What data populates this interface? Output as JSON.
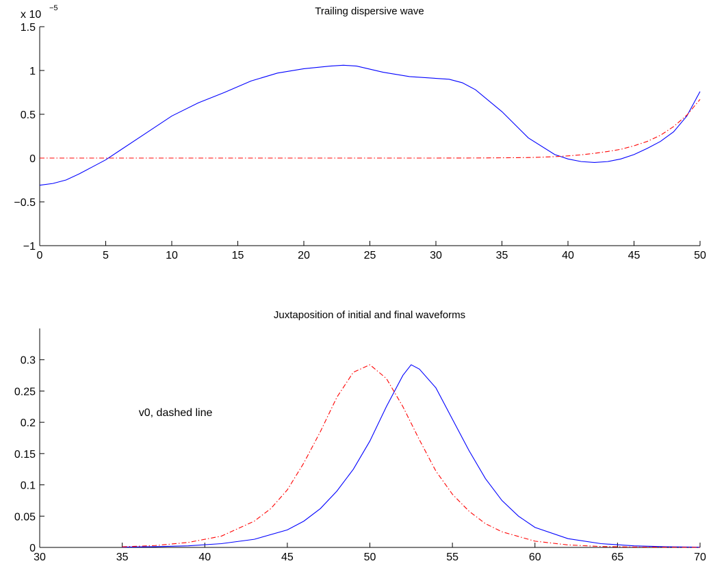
{
  "chart_data": [
    {
      "type": "line",
      "title": "Trailing dispersive wave",
      "xlabel": "",
      "ylabel": "",
      "xlim": [
        0,
        50
      ],
      "ylim": [
        -1,
        1.5
      ],
      "y_exponent_label": "x 10",
      "y_exponent_power": "−5",
      "grid": false,
      "x_ticks": [
        0,
        5,
        10,
        15,
        20,
        25,
        30,
        35,
        40,
        45,
        50
      ],
      "y_ticks": [
        -1,
        -0.5,
        0,
        0.5,
        1,
        1.5
      ],
      "x_tick_labels": [
        "0",
        "5",
        "10",
        "15",
        "20",
        "25",
        "30",
        "35",
        "40",
        "45",
        "50"
      ],
      "y_tick_labels": [
        "−1",
        "−0.5",
        "0",
        "0.5",
        "1",
        "1.5"
      ],
      "series": [
        {
          "style": "solid",
          "color": "#0000ff",
          "x": [
            0,
            1,
            2,
            3,
            4,
            5,
            6,
            8,
            10,
            12,
            14,
            16,
            18,
            20,
            22,
            23,
            24,
            26,
            28,
            30,
            31,
            32,
            33,
            35,
            37,
            39,
            40,
            41,
            42,
            43,
            44,
            45,
            46,
            47,
            48,
            49,
            50
          ],
          "y": [
            -0.31,
            -0.29,
            -0.25,
            -0.18,
            -0.1,
            -0.02,
            0.08,
            0.28,
            0.48,
            0.63,
            0.75,
            0.88,
            0.97,
            1.02,
            1.05,
            1.06,
            1.05,
            0.98,
            0.93,
            0.91,
            0.9,
            0.86,
            0.78,
            0.53,
            0.23,
            0.04,
            -0.01,
            -0.04,
            -0.05,
            -0.04,
            -0.01,
            0.04,
            0.11,
            0.19,
            0.3,
            0.48,
            0.76
          ]
        },
        {
          "style": "dashdot",
          "color": "#ff0000",
          "x": [
            0,
            5,
            10,
            15,
            20,
            25,
            30,
            33,
            35,
            37,
            38,
            39,
            40,
            41,
            42,
            43,
            44,
            45,
            46,
            47,
            48,
            49,
            50
          ],
          "y": [
            0,
            0,
            0,
            0,
            0,
            0,
            0,
            0.001,
            0.003,
            0.006,
            0.01,
            0.016,
            0.025,
            0.037,
            0.054,
            0.075,
            0.1,
            0.14,
            0.19,
            0.26,
            0.36,
            0.49,
            0.67
          ]
        }
      ]
    },
    {
      "type": "line",
      "title": "Juxtaposition of initial and final waveforms",
      "xlabel": "",
      "ylabel": "",
      "xlim": [
        30,
        70
      ],
      "ylim": [
        0,
        0.35
      ],
      "grid": false,
      "x_ticks": [
        30,
        35,
        40,
        45,
        50,
        55,
        60,
        65,
        70
      ],
      "y_ticks": [
        0,
        0.05,
        0.1,
        0.15,
        0.2,
        0.25,
        0.3
      ],
      "x_tick_labels": [
        "30",
        "35",
        "40",
        "45",
        "50",
        "55",
        "60",
        "65",
        "70"
      ],
      "y_tick_labels": [
        "0",
        "0.05",
        "0.1",
        "0.15",
        "0.2",
        "0.25",
        "0.3"
      ],
      "annotation": {
        "text": "v0, dashed line",
        "x": 36,
        "y": 0.21
      },
      "series": [
        {
          "style": "solid",
          "color": "#0000ff",
          "x": [
            35,
            37,
            39,
            41,
            43,
            45,
            46,
            47,
            48,
            49,
            50,
            51,
            52,
            52.5,
            53,
            54,
            55,
            56,
            57,
            58,
            59,
            60,
            62,
            64,
            66,
            68,
            70
          ],
          "y": [
            0.0005,
            0.0012,
            0.0025,
            0.006,
            0.013,
            0.028,
            0.042,
            0.062,
            0.09,
            0.125,
            0.17,
            0.225,
            0.275,
            0.292,
            0.285,
            0.255,
            0.205,
            0.155,
            0.11,
            0.075,
            0.05,
            0.032,
            0.014,
            0.006,
            0.0025,
            0.001,
            0.0004
          ]
        },
        {
          "style": "dashdot",
          "color": "#ff0000",
          "x": [
            35,
            37,
            39,
            41,
            43,
            44,
            45,
            46,
            47,
            48,
            49,
            50,
            51,
            52,
            53,
            54,
            55,
            56,
            57,
            58,
            60,
            62,
            64,
            66,
            70
          ],
          "y": [
            0.001,
            0.003,
            0.008,
            0.018,
            0.042,
            0.062,
            0.092,
            0.135,
            0.185,
            0.24,
            0.28,
            0.292,
            0.27,
            0.225,
            0.172,
            0.122,
            0.085,
            0.058,
            0.038,
            0.025,
            0.01,
            0.004,
            0.0015,
            0.0006,
            0.0001
          ]
        }
      ]
    }
  ]
}
